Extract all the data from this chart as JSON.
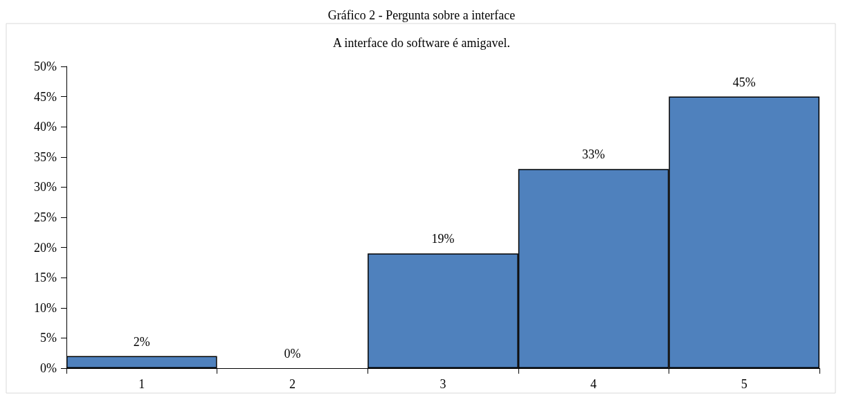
{
  "chart_data": {
    "type": "bar",
    "title": "Gráfico 2 - Pergunta sobre a interface",
    "subtitle": "A interface do software é amigavel.",
    "categories": [
      "1",
      "2",
      "3",
      "4",
      "5"
    ],
    "values": [
      2,
      0,
      19,
      33,
      45
    ],
    "color": "#4f81bd",
    "value_labels": [
      "2%",
      "0%",
      "19%",
      "33%",
      "45%"
    ],
    "ylim": [
      0,
      50
    ],
    "yticks": [
      {
        "value": 0,
        "label": "0%"
      },
      {
        "value": 5,
        "label": "5%"
      },
      {
        "value": 10,
        "label": "10%"
      },
      {
        "value": 15,
        "label": "15%"
      },
      {
        "value": 20,
        "label": "20%"
      },
      {
        "value": 25,
        "label": "25%"
      },
      {
        "value": 30,
        "label": "30%"
      },
      {
        "value": 35,
        "label": "35%"
      },
      {
        "value": 40,
        "label": "40%"
      },
      {
        "value": 45,
        "label": "45%"
      },
      {
        "value": 50,
        "label": "50%"
      }
    ],
    "grid": false
  }
}
